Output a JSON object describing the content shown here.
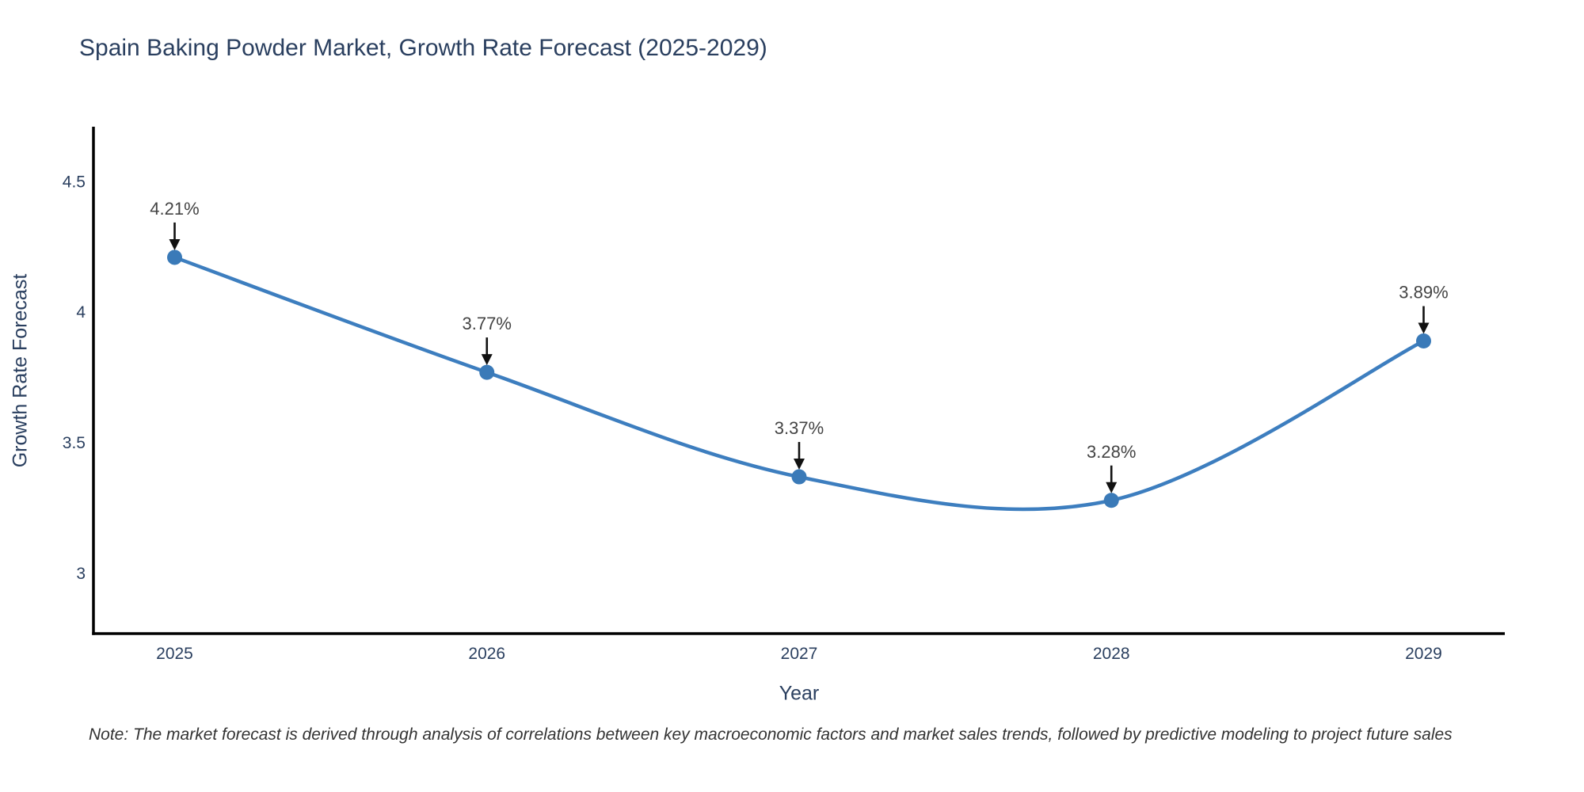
{
  "page": {
    "title": "Spain Baking Powder Market, Growth Rate Forecast (2025-2029)",
    "note": "Note: The market forecast is derived through analysis of correlations between key macroeconomic factors and market sales trends, followed by predictive modeling to project future sales"
  },
  "chart_data": {
    "type": "line",
    "title": "Spain Baking Powder Market, Growth Rate Forecast (2025-2029)",
    "xlabel": "Year",
    "ylabel": "Growth Rate Forecast",
    "x": [
      2025,
      2026,
      2027,
      2028,
      2029
    ],
    "values": [
      4.21,
      3.77,
      3.37,
      3.28,
      3.89
    ],
    "point_labels": [
      "4.21%",
      "3.77%",
      "3.37%",
      "3.28%",
      "3.89%"
    ],
    "xticks": [
      "2025",
      "2026",
      "2027",
      "2028",
      "2029"
    ],
    "yticks": [
      "3",
      "3.5",
      "4",
      "4.5"
    ],
    "ytick_values": [
      3,
      3.5,
      4,
      4.5
    ],
    "xlim": [
      2024.74,
      2029.26
    ],
    "ylim": [
      2.77,
      4.71
    ],
    "line_shape": "spline",
    "grid": false,
    "legend": "none",
    "colors": {
      "line": "#3d7ebf",
      "marker": "#3a7ab8",
      "axis": "#000000",
      "title_text": "#2a3f5f",
      "tick_text": "#2a3f5f",
      "annotation_text": "#444444",
      "arrow": "#111111",
      "note_text": "#333333",
      "background": "#ffffff"
    }
  }
}
